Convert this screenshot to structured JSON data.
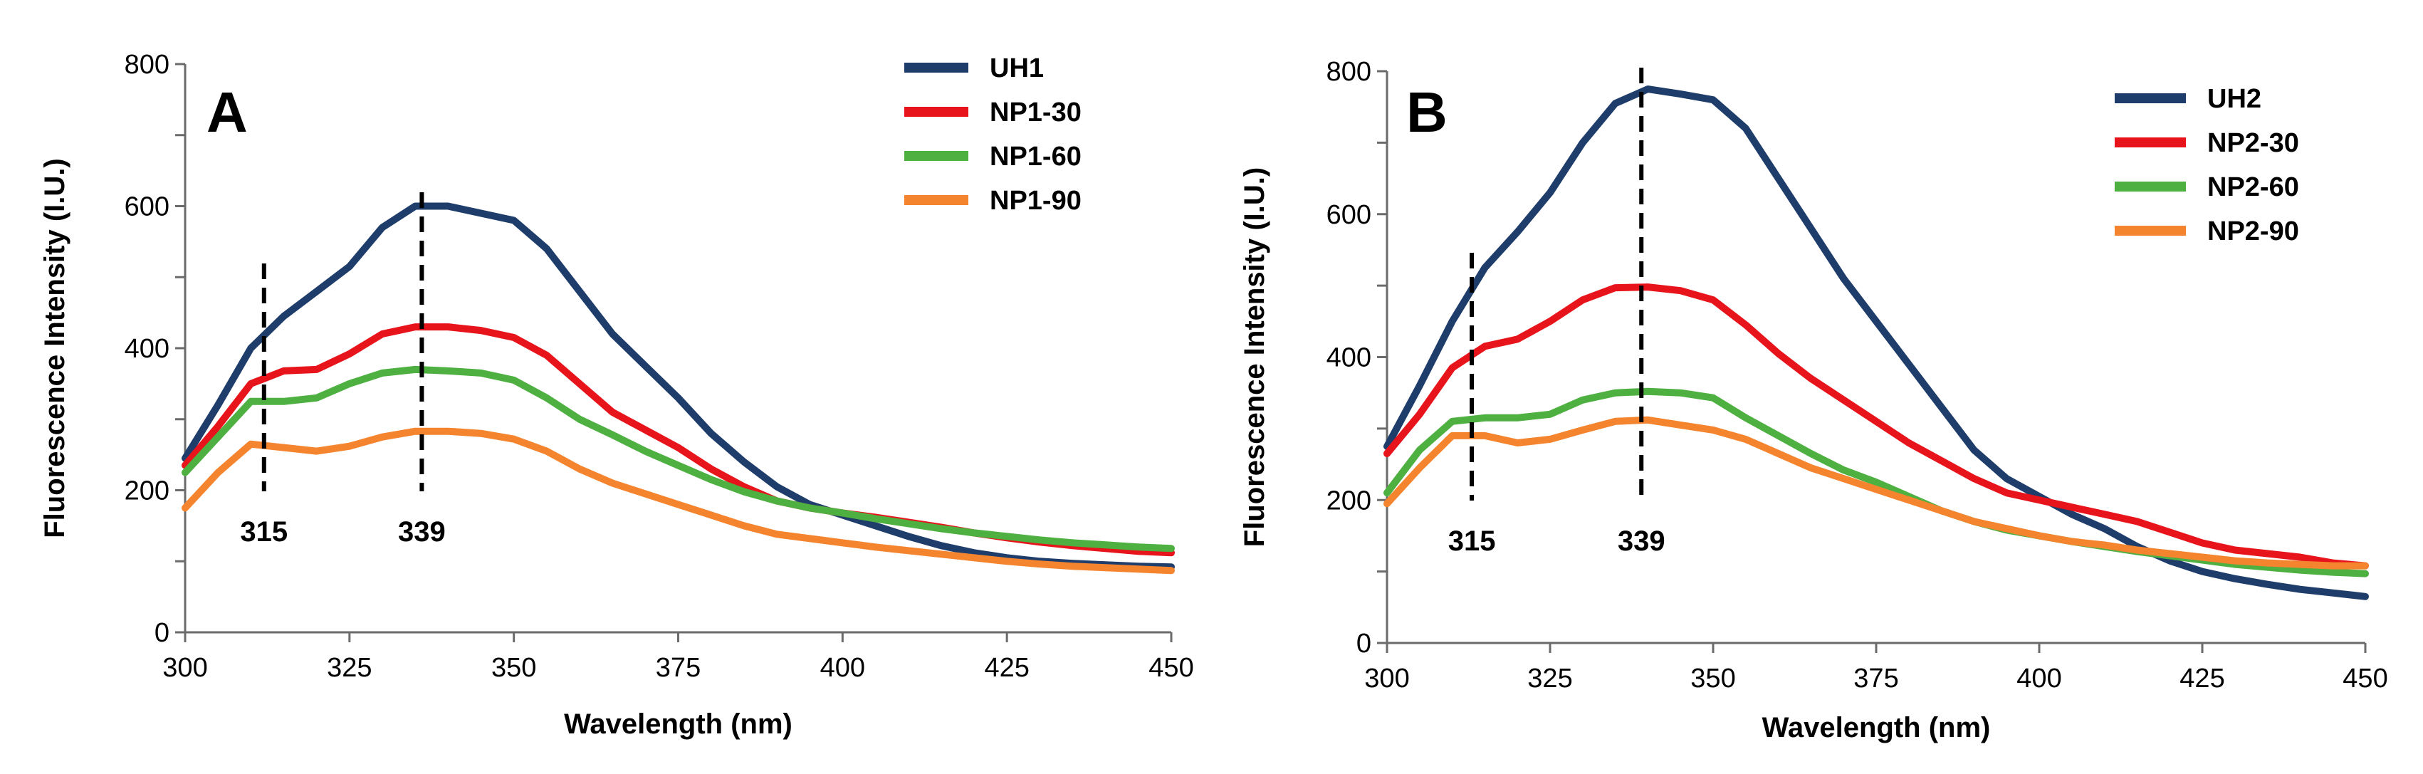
{
  "chart_data": [
    {
      "type": "line",
      "panel_label": "A",
      "xlabel": "Wavelength (nm)",
      "ylabel": "Fluorescence Intensity (I.U.)",
      "xlim": [
        300,
        450
      ],
      "ylim": [
        0,
        800
      ],
      "x_ticks": [
        "300",
        "325",
        "350",
        "375",
        "400",
        "425",
        "450"
      ],
      "y_ticks": [
        "0",
        "200",
        "400",
        "600",
        "800"
      ],
      "legend_position": "top-right",
      "markers": [
        {
          "x": 312,
          "label": "315"
        },
        {
          "x": 336,
          "label": "339"
        }
      ],
      "x": [
        300,
        305,
        310,
        315,
        320,
        325,
        330,
        335,
        340,
        345,
        350,
        355,
        360,
        365,
        370,
        375,
        380,
        385,
        390,
        395,
        400,
        405,
        410,
        415,
        420,
        425,
        430,
        435,
        440,
        445,
        450
      ],
      "series": [
        {
          "name": "UH1",
          "color": "#1f3d6b",
          "values": [
            245,
            320,
            400,
            445,
            480,
            515,
            570,
            600,
            600,
            590,
            580,
            540,
            480,
            420,
            375,
            330,
            280,
            240,
            205,
            180,
            165,
            150,
            135,
            122,
            112,
            105,
            100,
            97,
            95,
            93,
            92
          ]
        },
        {
          "name": "NP1-30",
          "color": "#e8141b",
          "values": [
            235,
            290,
            350,
            368,
            370,
            392,
            420,
            430,
            430,
            425,
            415,
            390,
            350,
            310,
            285,
            260,
            230,
            205,
            185,
            175,
            168,
            162,
            155,
            148,
            140,
            133,
            127,
            122,
            118,
            114,
            112
          ]
        },
        {
          "name": "NP1-60",
          "color": "#4db040",
          "values": [
            225,
            275,
            325,
            325,
            330,
            350,
            365,
            370,
            368,
            365,
            355,
            330,
            300,
            278,
            255,
            235,
            215,
            198,
            185,
            175,
            168,
            160,
            153,
            146,
            140,
            135,
            130,
            126,
            123,
            120,
            118
          ]
        },
        {
          "name": "NP1-90",
          "color": "#f5842f",
          "values": [
            175,
            225,
            265,
            260,
            255,
            262,
            275,
            283,
            283,
            280,
            272,
            255,
            230,
            210,
            195,
            180,
            165,
            150,
            138,
            132,
            126,
            120,
            115,
            110,
            105,
            100,
            96,
            93,
            91,
            89,
            87
          ]
        }
      ]
    },
    {
      "type": "line",
      "panel_label": "B",
      "xlabel": "Wavelength (nm)",
      "ylabel": "Fluorescence Intensity (I.U.)",
      "xlim": [
        300,
        450
      ],
      "ylim": [
        0,
        800
      ],
      "x_ticks": [
        "300",
        "325",
        "350",
        "375",
        "400",
        "425",
        "450"
      ],
      "y_ticks": [
        "0",
        "200",
        "400",
        "600",
        "800"
      ],
      "legend_position": "top-right",
      "markers": [
        {
          "x": 313,
          "label": "315"
        },
        {
          "x": 339,
          "label": "339"
        }
      ],
      "x": [
        300,
        305,
        310,
        315,
        320,
        325,
        330,
        335,
        340,
        345,
        350,
        355,
        360,
        365,
        370,
        375,
        380,
        385,
        390,
        395,
        400,
        405,
        410,
        415,
        420,
        425,
        430,
        435,
        440,
        445,
        450
      ],
      "series": [
        {
          "name": "UH2",
          "color": "#1f3d6b",
          "values": [
            275,
            360,
            450,
            525,
            575,
            630,
            700,
            755,
            775,
            768,
            760,
            720,
            650,
            580,
            510,
            450,
            390,
            330,
            270,
            230,
            205,
            180,
            160,
            135,
            115,
            100,
            90,
            82,
            75,
            70,
            65
          ]
        },
        {
          "name": "NP2-30",
          "color": "#e8141b",
          "values": [
            265,
            320,
            385,
            415,
            425,
            450,
            480,
            497,
            498,
            493,
            480,
            445,
            405,
            370,
            340,
            310,
            280,
            255,
            230,
            210,
            200,
            190,
            180,
            170,
            155,
            140,
            130,
            125,
            120,
            112,
            108
          ]
        },
        {
          "name": "NP2-60",
          "color": "#4db040",
          "values": [
            210,
            270,
            310,
            315,
            315,
            320,
            340,
            350,
            352,
            350,
            343,
            315,
            290,
            265,
            242,
            225,
            205,
            185,
            170,
            158,
            150,
            142,
            135,
            128,
            122,
            116,
            110,
            106,
            102,
            99,
            97
          ]
        },
        {
          "name": "NP2-90",
          "color": "#f5842f",
          "values": [
            195,
            245,
            290,
            290,
            280,
            285,
            298,
            310,
            312,
            305,
            298,
            285,
            265,
            245,
            230,
            215,
            200,
            185,
            170,
            160,
            150,
            142,
            137,
            130,
            125,
            120,
            115,
            112,
            110,
            108,
            108
          ]
        }
      ]
    }
  ]
}
